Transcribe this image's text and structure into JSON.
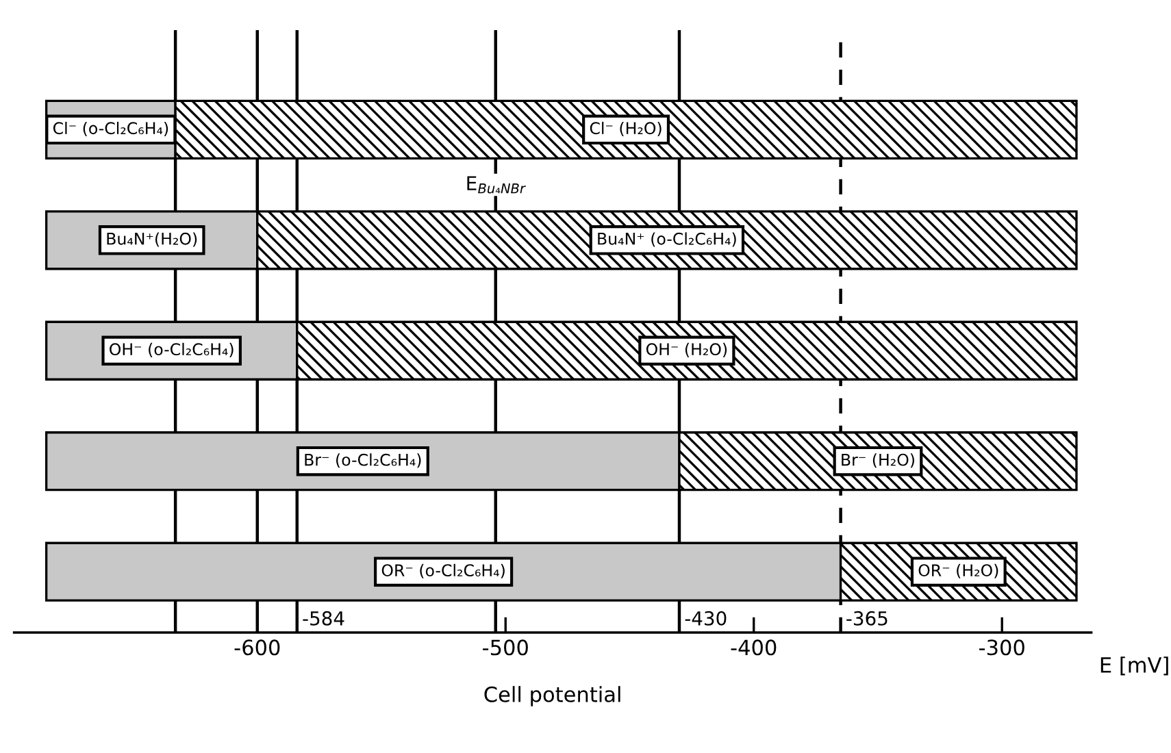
{
  "chart_data": {
    "type": "bar",
    "orientation": "horizontal",
    "categories": [
      null,
      null,
      null,
      null,
      null
    ],
    "series": [
      {
        "color": "#c8c8c8",
        "base": [
          -685,
          -685,
          -685,
          -685,
          -685
        ],
        "values": [
          52,
          85,
          101,
          255,
          320
        ],
        "value_labels": [
          "Cl⁻ (o-Cl₂C₆H₄)",
          "Bu₄N⁺(H₂O)",
          "OH⁻ (o-Cl₂C₆H₄)",
          "Br⁻ (o-Cl₂C₆H₄)",
          "OR⁻ (o-Cl₂C₆H₄)"
        ]
      },
      {
        "color": "#000000",
        "base": [
          -633,
          -600,
          -584,
          -430,
          -365
        ],
        "values": [
          363,
          330,
          314,
          160,
          95
        ],
        "value_labels": [
          "Cl⁻ (H₂O)",
          "Bu₄N⁺ (o-Cl₂C₆H₄)",
          "OH⁻ (H₂O)",
          "Br⁻ (H₂O)",
          "OR⁻ (H₂O)"
        ]
      }
    ],
    "xlim": [
      -698,
      -264
    ],
    "xticks": [
      -600,
      -500,
      -400,
      -300
    ],
    "xlabel": "Cell potential",
    "annotations": [
      "E [mV]"
    ],
    "ref_lines": [
      {
        "axis": "x",
        "value": -633,
        "label": null
      },
      {
        "axis": "x",
        "value": -600,
        "label": null
      },
      {
        "axis": "x",
        "value": -584,
        "label": "-584"
      },
      {
        "axis": "x",
        "value": -504,
        "label": "E$_{Bu₄NBr}$"
      },
      {
        "axis": "x",
        "value": -430,
        "label": "-430"
      },
      {
        "axis": "x",
        "value": -365,
        "label": "-365",
        "line_style": "dashed"
      }
    ],
    "tick_labels": "x",
    "legend": false,
    "grid": false
  }
}
